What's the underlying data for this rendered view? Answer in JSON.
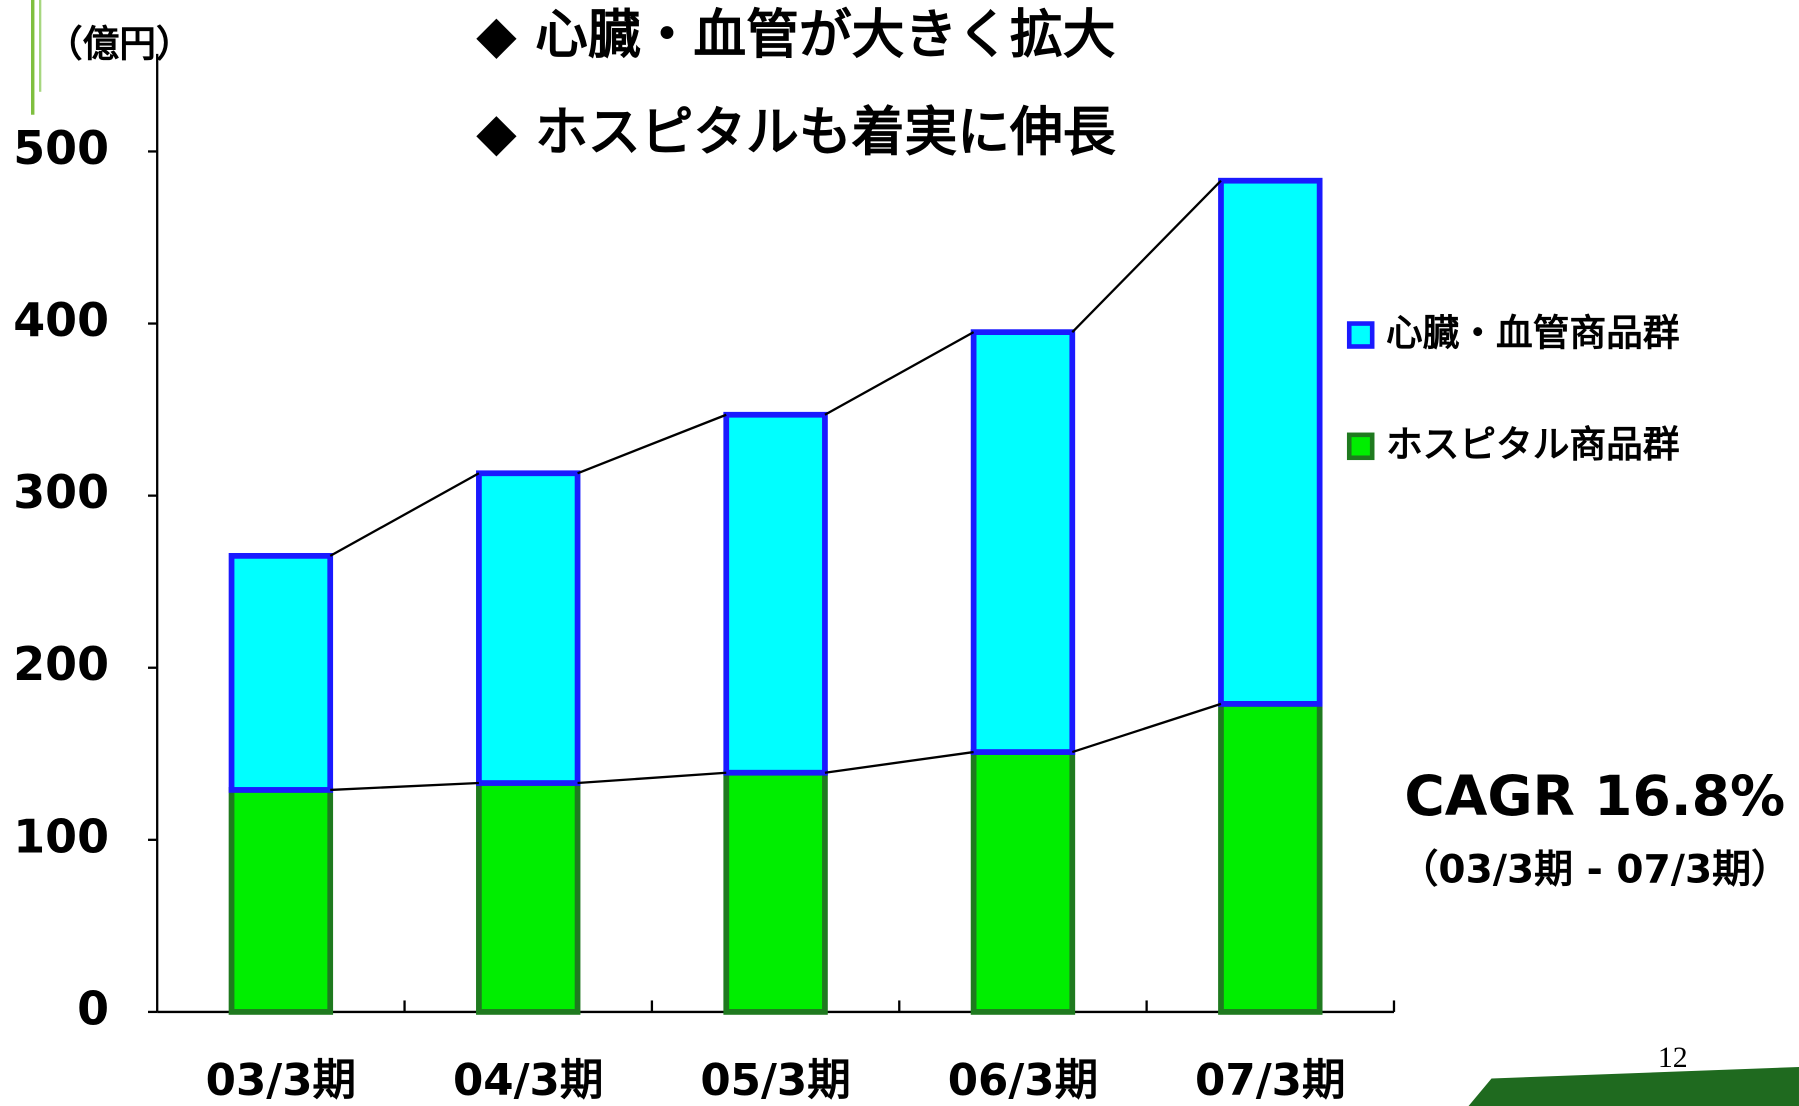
{
  "chart_data": {
    "type": "stacked_bar",
    "title_lines": [
      "◆ 心臓・血管が大きく拡大",
      "◆ ホスピタルも着実に伸長"
    ],
    "y_unit": "（億円）",
    "categories": [
      "03/3期",
      "04/3期",
      "05/3期",
      "06/3期",
      "07/3期"
    ],
    "series": [
      {
        "name": "ホスピタル商品群",
        "color": "#00ee00",
        "edge": "#1f7a1f",
        "values": [
          129,
          133,
          139,
          151,
          179
        ]
      },
      {
        "name": "心臓・血管商品群",
        "color": "#00ffff",
        "edge": "#1a1aff",
        "values": [
          136,
          180,
          208,
          244,
          304
        ]
      }
    ],
    "ylim": [
      0,
      500
    ],
    "yticks": [
      0,
      100,
      200,
      300,
      400,
      500
    ],
    "annotations": [
      "CAGR 16.8%",
      "（03/3期 - 07/3期）"
    ],
    "page_number": "12"
  }
}
